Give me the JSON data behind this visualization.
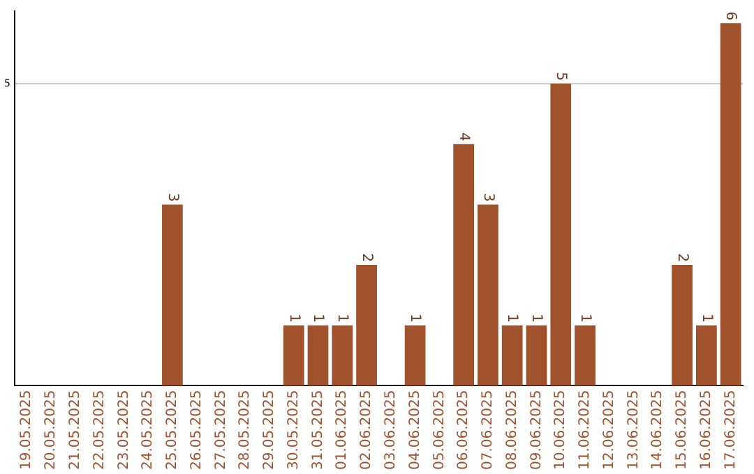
{
  "chart_data": {
    "type": "bar",
    "categories": [
      "19.05.2025",
      "20.05.2025",
      "21.05.2025",
      "22.05.2025",
      "23.05.2025",
      "24.05.2025",
      "25.05.2025",
      "26.05.2025",
      "27.05.2025",
      "28.05.2025",
      "29.05.2025",
      "30.05.2025",
      "31.05.2025",
      "01.06.2025",
      "02.06.2025",
      "03.06.2025",
      "04.06.2025",
      "05.06.2025",
      "06.06.2025",
      "07.06.2025",
      "08.06.2025",
      "09.06.2025",
      "10.06.2025",
      "11.06.2025",
      "12.06.2025",
      "13.06.2025",
      "14.06.2025",
      "15.06.2025",
      "16.06.2025",
      "17.06.2025"
    ],
    "values": [
      0,
      0,
      0,
      0,
      0,
      0,
      3,
      0,
      0,
      0,
      0,
      1,
      1,
      1,
      2,
      0,
      1,
      0,
      4,
      3,
      1,
      1,
      5,
      1,
      0,
      0,
      0,
      2,
      1,
      6
    ],
    "value_labels": [
      null,
      null,
      null,
      null,
      null,
      null,
      "3",
      null,
      null,
      null,
      null,
      "1",
      "1",
      "1",
      "2",
      null,
      "1",
      null,
      "4",
      "3",
      "1",
      "1",
      "5",
      "1",
      null,
      null,
      null,
      "2",
      "1",
      "6"
    ],
    "color": "#a0522d",
    "ylim": [
      0,
      6.2
    ],
    "yticks": [
      5
    ],
    "grid": "y",
    "legend": false
  }
}
